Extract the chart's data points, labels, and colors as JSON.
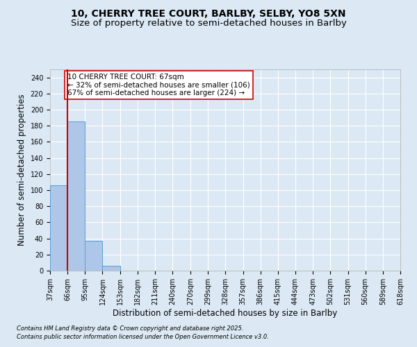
{
  "title_line1": "10, CHERRY TREE COURT, BARLBY, SELBY, YO8 5XN",
  "title_line2": "Size of property relative to semi-detached houses in Barlby",
  "xlabel": "Distribution of semi-detached houses by size in Barlby",
  "ylabel": "Number of semi-detached properties",
  "footnote1": "Contains HM Land Registry data © Crown copyright and database right 2025.",
  "footnote2": "Contains public sector information licensed under the Open Government Licence v3.0.",
  "bin_labels": [
    "37sqm",
    "66sqm",
    "95sqm",
    "124sqm",
    "153sqm",
    "182sqm",
    "211sqm",
    "240sqm",
    "270sqm",
    "299sqm",
    "328sqm",
    "357sqm",
    "386sqm",
    "415sqm",
    "444sqm",
    "473sqm",
    "502sqm",
    "531sqm",
    "560sqm",
    "589sqm",
    "618sqm"
  ],
  "bin_edges": [
    37,
    66,
    95,
    124,
    153,
    182,
    211,
    240,
    270,
    299,
    328,
    357,
    386,
    415,
    444,
    473,
    502,
    531,
    560,
    589,
    618
  ],
  "bar_heights": [
    106,
    185,
    37,
    6,
    0,
    0,
    0,
    0,
    0,
    0,
    0,
    0,
    0,
    0,
    0,
    0,
    0,
    0,
    0,
    0
  ],
  "bar_color": "#aec6e8",
  "bar_edge_color": "#5a9fd4",
  "property_line_x": 66,
  "property_line_color": "#cc0000",
  "annotation_text": "10 CHERRY TREE COURT: 67sqm\n← 32% of semi-detached houses are smaller (106)\n67% of semi-detached houses are larger (224) →",
  "annotation_box_color": "#ffffff",
  "annotation_box_edge": "#cc0000",
  "ylim": [
    0,
    250
  ],
  "yticks": [
    0,
    20,
    40,
    60,
    80,
    100,
    120,
    140,
    160,
    180,
    200,
    220,
    240
  ],
  "bg_color": "#dce9f5",
  "grid_color": "#ffffff",
  "title_fontsize": 10,
  "subtitle_fontsize": 9.5,
  "label_fontsize": 8.5,
  "tick_fontsize": 7,
  "annot_fontsize": 7.5
}
